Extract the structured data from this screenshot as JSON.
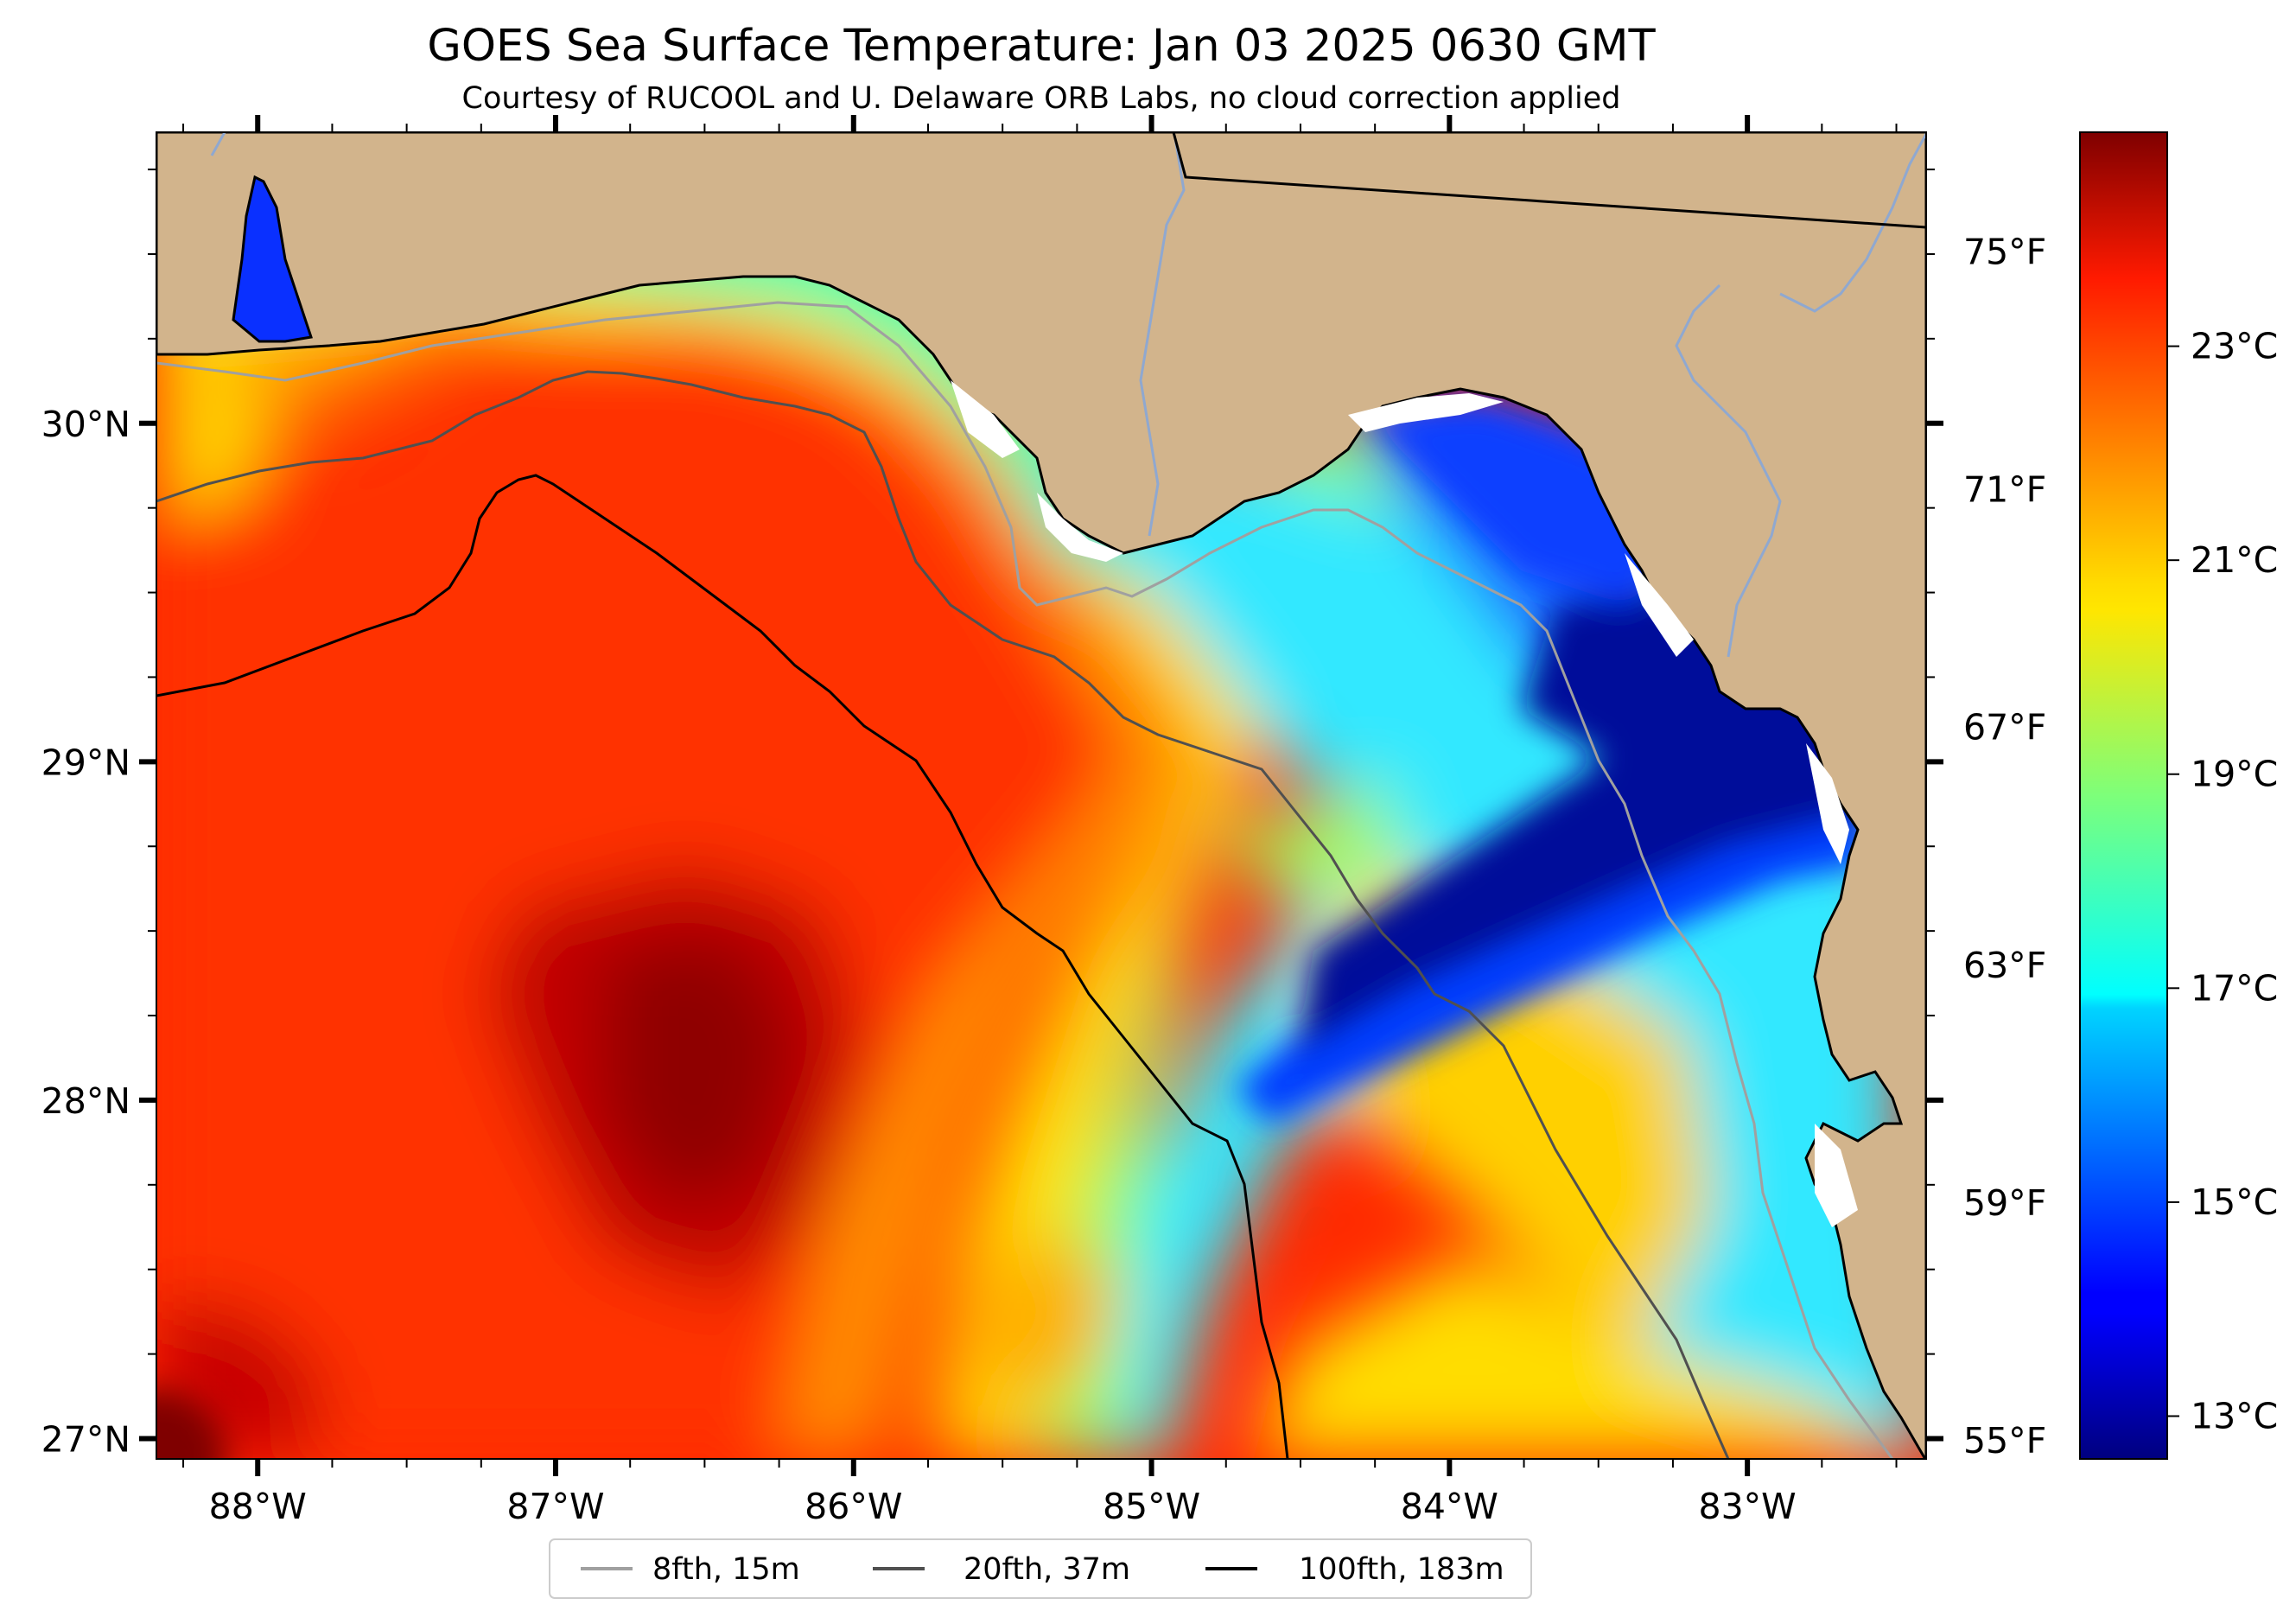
{
  "title": "GOES Sea Surface Temperature: Jan 03 2025 0630 GMT",
  "subtitle": "Courtesy of RUCOOL and U. Delaware ORB Labs, no cloud correction applied",
  "map": {
    "extent": {
      "lon": [
        -88.34,
        -82.4
      ],
      "lat": [
        26.94,
        30.86
      ]
    },
    "land_color": "#d2b48c",
    "lon_ticks": [
      {
        "value": -88,
        "label": "88°W"
      },
      {
        "value": -87,
        "label": "87°W"
      },
      {
        "value": -86,
        "label": "86°W"
      },
      {
        "value": -85,
        "label": "85°W"
      },
      {
        "value": -84,
        "label": "84°W"
      },
      {
        "value": -83,
        "label": "83°W"
      }
    ],
    "lat_ticks": [
      {
        "value": 30,
        "label": "30°N"
      },
      {
        "value": 29,
        "label": "29°N"
      },
      {
        "value": 28,
        "label": "28°N"
      },
      {
        "value": 27,
        "label": "27°N"
      }
    ],
    "fahrenheit_ticks": [
      {
        "value": 75,
        "label": "75°F"
      },
      {
        "value": 71,
        "label": "71°F"
      },
      {
        "value": 67,
        "label": "67°F"
      },
      {
        "value": 63,
        "label": "63°F"
      },
      {
        "value": 59,
        "label": "59°F"
      },
      {
        "value": 55,
        "label": "55°F"
      }
    ]
  },
  "colorbar": {
    "range_c": [
      12.6,
      25.0
    ],
    "ticks": [
      {
        "value": 23,
        "label": "23°C"
      },
      {
        "value": 21,
        "label": "21°C"
      },
      {
        "value": 19,
        "label": "19°C"
      },
      {
        "value": 17,
        "label": "17°C"
      },
      {
        "value": 15,
        "label": "15°C"
      },
      {
        "value": 13,
        "label": "13°C"
      }
    ]
  },
  "legend": {
    "items": [
      {
        "label": "8fth, 15m",
        "color": "#a0a0a0"
      },
      {
        "label": "20fth, 37m",
        "color": "#505050"
      },
      {
        "label": "100fth, 183m",
        "color": "#000000"
      }
    ]
  }
}
